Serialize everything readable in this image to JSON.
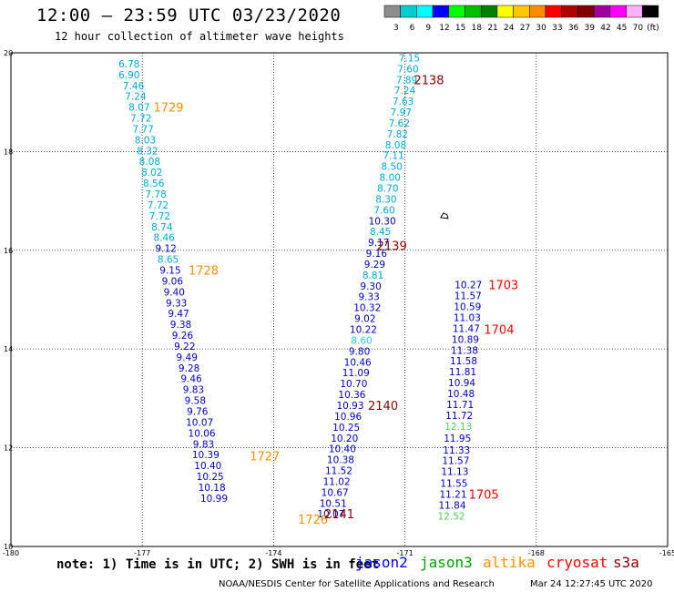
{
  "header": {
    "title": "12:00 – 23:59 UTC 03/23/2020",
    "subtitle": "12 hour collection of altimeter wave heights"
  },
  "color_scale": {
    "unit": "(ft)",
    "bins": [
      {
        "label": "3",
        "color": "#8c8c8c"
      },
      {
        "label": "6",
        "color": "#00d0d0"
      },
      {
        "label": "9",
        "color": "#00ffff"
      },
      {
        "label": "12",
        "color": "#0000ff"
      },
      {
        "label": "15",
        "color": "#00ff00"
      },
      {
        "label": "18",
        "color": "#00bf00"
      },
      {
        "label": "21",
        "color": "#008000"
      },
      {
        "label": "24",
        "color": "#ffff00"
      },
      {
        "label": "27",
        "color": "#ffc800"
      },
      {
        "label": "30",
        "color": "#ff8c00"
      },
      {
        "label": "33",
        "color": "#ff0000"
      },
      {
        "label": "36",
        "color": "#b00000"
      },
      {
        "label": "39",
        "color": "#800000"
      },
      {
        "label": "42",
        "color": "#a000a0"
      },
      {
        "label": "45",
        "color": "#ff00ff"
      },
      {
        "label": "70",
        "color": "#ffb0ff"
      },
      {
        "label": "",
        "color": "#000000"
      }
    ]
  },
  "axes": {
    "lon_ticks": [
      "-180",
      "-177",
      "-174",
      "-171",
      "-168",
      "-165"
    ],
    "lat_ticks": [
      "10",
      "12",
      "14",
      "16",
      "18",
      "20"
    ]
  },
  "colors": {
    "light": "#00a8d8",
    "dark": "#0000c0",
    "pale": "#30c8e0",
    "green": "#50d050",
    "orange": "#ff9000",
    "darkred": "#8b0000",
    "red": "#ff0000"
  },
  "tracks": [
    {
      "name": "track-west",
      "points": [
        {
          "v": "6.78",
          "lon": -177.3,
          "lat": 19.78,
          "c": "light"
        },
        {
          "v": "6.90",
          "lon": -177.3,
          "lat": 19.56,
          "c": "light"
        },
        {
          "v": "7.46",
          "lon": -177.2,
          "lat": 19.34,
          "c": "light"
        },
        {
          "v": "7.24",
          "lon": -177.15,
          "lat": 19.12,
          "c": "light"
        },
        {
          "v": "8.07",
          "lon": -177.07,
          "lat": 18.9,
          "c": "light"
        },
        {
          "v": "7.72",
          "lon": -177.03,
          "lat": 18.68,
          "c": "light"
        },
        {
          "v": "7.77",
          "lon": -176.98,
          "lat": 18.46,
          "c": "light"
        },
        {
          "v": "8.03",
          "lon": -176.93,
          "lat": 18.24,
          "c": "light"
        },
        {
          "v": "8.32",
          "lon": -176.88,
          "lat": 18.02,
          "c": "light"
        },
        {
          "v": "8.08",
          "lon": -176.83,
          "lat": 17.8,
          "c": "light"
        },
        {
          "v": "8.02",
          "lon": -176.78,
          "lat": 17.58,
          "c": "light"
        },
        {
          "v": "8.56",
          "lon": -176.74,
          "lat": 17.36,
          "c": "light"
        },
        {
          "v": "7.78",
          "lon": -176.69,
          "lat": 17.14,
          "c": "light"
        },
        {
          "v": "7.72",
          "lon": -176.64,
          "lat": 16.92,
          "c": "light"
        },
        {
          "v": "7.72",
          "lon": -176.6,
          "lat": 16.7,
          "c": "light"
        },
        {
          "v": "8.74",
          "lon": -176.55,
          "lat": 16.48,
          "c": "light"
        },
        {
          "v": "8.46",
          "lon": -176.5,
          "lat": 16.26,
          "c": "light"
        },
        {
          "v": "9.12",
          "lon": -176.46,
          "lat": 16.04,
          "c": "dark"
        },
        {
          "v": "8.65",
          "lon": -176.41,
          "lat": 15.82,
          "c": "light"
        },
        {
          "v": "9.15",
          "lon": -176.36,
          "lat": 15.6,
          "c": "dark"
        },
        {
          "v": "9.06",
          "lon": -176.31,
          "lat": 15.38,
          "c": "dark"
        },
        {
          "v": "9.40",
          "lon": -176.27,
          "lat": 15.16,
          "c": "dark"
        },
        {
          "v": "9.33",
          "lon": -176.22,
          "lat": 14.94,
          "c": "dark"
        },
        {
          "v": "9.47",
          "lon": -176.17,
          "lat": 14.72,
          "c": "dark"
        },
        {
          "v": "9.38",
          "lon": -176.12,
          "lat": 14.5,
          "c": "dark"
        },
        {
          "v": "9.26",
          "lon": -176.08,
          "lat": 14.28,
          "c": "dark"
        },
        {
          "v": "9.22",
          "lon": -176.03,
          "lat": 14.06,
          "c": "dark"
        },
        {
          "v": "9.49",
          "lon": -175.98,
          "lat": 13.84,
          "c": "dark"
        },
        {
          "v": "9.28",
          "lon": -175.93,
          "lat": 13.62,
          "c": "dark"
        },
        {
          "v": "9.46",
          "lon": -175.88,
          "lat": 13.4,
          "c": "dark"
        },
        {
          "v": "9.83",
          "lon": -175.83,
          "lat": 13.18,
          "c": "dark"
        },
        {
          "v": "9.58",
          "lon": -175.79,
          "lat": 12.96,
          "c": "dark"
        },
        {
          "v": "9.76",
          "lon": -175.74,
          "lat": 12.74,
          "c": "dark"
        },
        {
          "v": "10.07",
          "lon": -175.69,
          "lat": 12.52,
          "c": "dark"
        },
        {
          "v": "10.06",
          "lon": -175.64,
          "lat": 12.3,
          "c": "dark"
        },
        {
          "v": "9.83",
          "lon": -175.6,
          "lat": 12.08,
          "c": "dark"
        },
        {
          "v": "10.39",
          "lon": -175.55,
          "lat": 11.86,
          "c": "dark"
        },
        {
          "v": "10.40",
          "lon": -175.5,
          "lat": 11.64,
          "c": "dark"
        },
        {
          "v": "10.25",
          "lon": -175.45,
          "lat": 11.42,
          "c": "dark"
        },
        {
          "v": "10.18",
          "lon": -175.41,
          "lat": 11.2,
          "c": "dark"
        },
        {
          "v": "10.99",
          "lon": -175.36,
          "lat": 10.98,
          "c": "dark"
        }
      ]
    },
    {
      "name": "track-middle",
      "points": [
        {
          "v": "7.15",
          "lon": -170.9,
          "lat": 19.9,
          "c": "light"
        },
        {
          "v": "7.60",
          "lon": -170.93,
          "lat": 19.68,
          "c": "light"
        },
        {
          "v": "7.89",
          "lon": -170.96,
          "lat": 19.46,
          "c": "light"
        },
        {
          "v": "7.24",
          "lon": -171.0,
          "lat": 19.24,
          "c": "light"
        },
        {
          "v": "7.63",
          "lon": -171.04,
          "lat": 19.02,
          "c": "light"
        },
        {
          "v": "7.97",
          "lon": -171.09,
          "lat": 18.8,
          "c": "light"
        },
        {
          "v": "7.62",
          "lon": -171.13,
          "lat": 18.58,
          "c": "light"
        },
        {
          "v": "7.82",
          "lon": -171.17,
          "lat": 18.36,
          "c": "light"
        },
        {
          "v": "8.08",
          "lon": -171.21,
          "lat": 18.14,
          "c": "light"
        },
        {
          "v": "7.11",
          "lon": -171.26,
          "lat": 17.92,
          "c": "light"
        },
        {
          "v": "8.50",
          "lon": -171.3,
          "lat": 17.7,
          "c": "light"
        },
        {
          "v": "8.00",
          "lon": -171.34,
          "lat": 17.48,
          "c": "light"
        },
        {
          "v": "8.70",
          "lon": -171.39,
          "lat": 17.26,
          "c": "light"
        },
        {
          "v": "8.30",
          "lon": -171.43,
          "lat": 17.04,
          "c": "light"
        },
        {
          "v": "7.60",
          "lon": -171.47,
          "lat": 16.82,
          "c": "light"
        },
        {
          "v": "10.30",
          "lon": -171.52,
          "lat": 16.6,
          "c": "dark"
        },
        {
          "v": "8.45",
          "lon": -171.56,
          "lat": 16.38,
          "c": "light"
        },
        {
          "v": "9.17",
          "lon": -171.6,
          "lat": 16.16,
          "c": "dark"
        },
        {
          "v": "9.16",
          "lon": -171.65,
          "lat": 15.94,
          "c": "dark"
        },
        {
          "v": "9.29",
          "lon": -171.69,
          "lat": 15.72,
          "c": "dark"
        },
        {
          "v": "8.81",
          "lon": -171.73,
          "lat": 15.5,
          "c": "light"
        },
        {
          "v": "9.30",
          "lon": -171.78,
          "lat": 15.28,
          "c": "dark"
        },
        {
          "v": "9.33",
          "lon": -171.82,
          "lat": 15.06,
          "c": "dark"
        },
        {
          "v": "10.32",
          "lon": -171.86,
          "lat": 14.84,
          "c": "dark"
        },
        {
          "v": "9.02",
          "lon": -171.91,
          "lat": 14.62,
          "c": "dark"
        },
        {
          "v": "10.22",
          "lon": -171.95,
          "lat": 14.4,
          "c": "dark"
        },
        {
          "v": "8.60",
          "lon": -171.99,
          "lat": 14.18,
          "c": "pale"
        },
        {
          "v": "9.80",
          "lon": -172.04,
          "lat": 13.96,
          "c": "dark"
        },
        {
          "v": "10.46",
          "lon": -172.08,
          "lat": 13.74,
          "c": "dark"
        },
        {
          "v": "11.09",
          "lon": -172.12,
          "lat": 13.52,
          "c": "dark"
        },
        {
          "v": "10.70",
          "lon": -172.17,
          "lat": 13.3,
          "c": "dark"
        },
        {
          "v": "10.36",
          "lon": -172.21,
          "lat": 13.08,
          "c": "dark"
        },
        {
          "v": "10.93",
          "lon": -172.25,
          "lat": 12.86,
          "c": "dark"
        },
        {
          "v": "10.96",
          "lon": -172.3,
          "lat": 12.64,
          "c": "dark"
        },
        {
          "v": "10.25",
          "lon": -172.34,
          "lat": 12.42,
          "c": "dark"
        },
        {
          "v": "10.20",
          "lon": -172.38,
          "lat": 12.2,
          "c": "dark"
        },
        {
          "v": "10.40",
          "lon": -172.43,
          "lat": 11.98,
          "c": "dark"
        },
        {
          "v": "10.38",
          "lon": -172.47,
          "lat": 11.76,
          "c": "dark"
        },
        {
          "v": "11.52",
          "lon": -172.51,
          "lat": 11.54,
          "c": "dark"
        },
        {
          "v": "11.02",
          "lon": -172.56,
          "lat": 11.32,
          "c": "dark"
        },
        {
          "v": "10.67",
          "lon": -172.6,
          "lat": 11.1,
          "c": "dark"
        },
        {
          "v": "10.51",
          "lon": -172.64,
          "lat": 10.88,
          "c": "dark"
        },
        {
          "v": "10.07",
          "lon": -172.69,
          "lat": 10.66,
          "c": "dark"
        }
      ]
    },
    {
      "name": "track-east",
      "points": [
        {
          "v": "10.27",
          "lon": -169.55,
          "lat": 15.3,
          "c": "dark"
        },
        {
          "v": "11.57",
          "lon": -169.56,
          "lat": 15.08,
          "c": "dark"
        },
        {
          "v": "10.59",
          "lon": -169.57,
          "lat": 14.86,
          "c": "dark"
        },
        {
          "v": "11.03",
          "lon": -169.58,
          "lat": 14.64,
          "c": "dark"
        },
        {
          "v": "11.47",
          "lon": -169.6,
          "lat": 14.42,
          "c": "dark"
        },
        {
          "v": "10.89",
          "lon": -169.62,
          "lat": 14.2,
          "c": "dark"
        },
        {
          "v": "11.38",
          "lon": -169.64,
          "lat": 13.98,
          "c": "dark"
        },
        {
          "v": "11.58",
          "lon": -169.66,
          "lat": 13.76,
          "c": "dark"
        },
        {
          "v": "11.81",
          "lon": -169.68,
          "lat": 13.54,
          "c": "dark"
        },
        {
          "v": "10.94",
          "lon": -169.7,
          "lat": 13.32,
          "c": "dark"
        },
        {
          "v": "10.48",
          "lon": -169.72,
          "lat": 13.1,
          "c": "dark"
        },
        {
          "v": "11.71",
          "lon": -169.74,
          "lat": 12.88,
          "c": "dark"
        },
        {
          "v": "11.72",
          "lon": -169.76,
          "lat": 12.66,
          "c": "dark"
        },
        {
          "v": "12.13",
          "lon": -169.78,
          "lat": 12.44,
          "c": "green"
        },
        {
          "v": "11.95",
          "lon": -169.8,
          "lat": 12.2,
          "c": "dark"
        },
        {
          "v": "11.33",
          "lon": -169.82,
          "lat": 11.96,
          "c": "dark"
        },
        {
          "v": "11.57",
          "lon": -169.84,
          "lat": 11.74,
          "c": "dark"
        },
        {
          "v": "11.13",
          "lon": -169.86,
          "lat": 11.52,
          "c": "dark"
        },
        {
          "v": "11.55",
          "lon": -169.88,
          "lat": 11.28,
          "c": "dark"
        },
        {
          "v": "11.21",
          "lon": -169.9,
          "lat": 11.06,
          "c": "dark"
        },
        {
          "v": "11.84",
          "lon": -169.92,
          "lat": 10.84,
          "c": "dark"
        },
        {
          "v": "12.52",
          "lon": -169.94,
          "lat": 10.62,
          "c": "green"
        }
      ]
    }
  ],
  "time_labels": [
    {
      "t": "2138",
      "lon": -170.45,
      "lat": 19.46,
      "c": "darkred"
    },
    {
      "t": "1729",
      "lon": -176.4,
      "lat": 18.9,
      "c": "orange"
    },
    {
      "t": "2139",
      "lon": -171.3,
      "lat": 16.1,
      "c": "darkred"
    },
    {
      "t": "1728",
      "lon": -175.6,
      "lat": 15.6,
      "c": "orange"
    },
    {
      "t": "1703",
      "lon": -168.75,
      "lat": 15.3,
      "c": "red"
    },
    {
      "t": "1704",
      "lon": -168.85,
      "lat": 14.4,
      "c": "red"
    },
    {
      "t": "2140",
      "lon": -171.5,
      "lat": 12.86,
      "c": "darkred"
    },
    {
      "t": "1727",
      "lon": -174.2,
      "lat": 11.84,
      "c": "orange"
    },
    {
      "t": "1705",
      "lon": -169.2,
      "lat": 11.06,
      "c": "red"
    },
    {
      "t": "2141",
      "lon": -172.5,
      "lat": 10.66,
      "c": "darkred"
    },
    {
      "t": "1726",
      "lon": -173.1,
      "lat": 10.55,
      "c": "orange"
    }
  ],
  "note": "note: 1) Time is in UTC; 2) SWH is in feet",
  "satellites": [
    {
      "name": "jason2",
      "color": "#0000ff"
    },
    {
      "name": "jason3",
      "color": "#00a000"
    },
    {
      "name": "altika",
      "color": "#ff9000"
    },
    {
      "name": "cryosat",
      "color": "#ff0000"
    },
    {
      "name": "s3a",
      "color": "#8b0000"
    }
  ],
  "footer": {
    "credit": "NOAA/NESDIS Center for Satellite Applications and Research",
    "timestamp": "Mar 24 12:27:45 UTC 2020"
  },
  "island": {
    "lon": -170.1,
    "lat": 16.7
  }
}
